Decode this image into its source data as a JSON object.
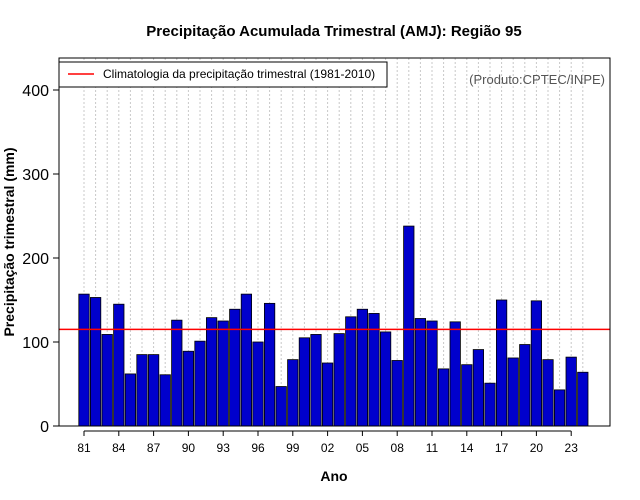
{
  "chart_data": {
    "type": "bar",
    "title": "Precipitação Acumulada Trimestral (AMJ): Região 95",
    "xlabel": "Ano",
    "ylabel": "Precipitação trimestral (mm)",
    "ylim": [
      0,
      440
    ],
    "yticks": [
      0,
      100,
      200,
      300,
      400
    ],
    "grid": "vertical dotted lines per bar",
    "years": [
      1981,
      1982,
      1983,
      1984,
      1985,
      1986,
      1987,
      1988,
      1989,
      1990,
      1991,
      1992,
      1993,
      1994,
      1995,
      1996,
      1997,
      1998,
      1999,
      2000,
      2001,
      2002,
      2003,
      2004,
      2005,
      2006,
      2007,
      2008,
      2009,
      2010,
      2011,
      2012,
      2013,
      2014,
      2015,
      2016,
      2017,
      2018,
      2019,
      2020,
      2021,
      2022,
      2023,
      2024
    ],
    "xtick_labels": [
      {
        "index": 0,
        "label": "81"
      },
      {
        "index": 3,
        "label": "84"
      },
      {
        "index": 6,
        "label": "87"
      },
      {
        "index": 9,
        "label": "90"
      },
      {
        "index": 12,
        "label": "93"
      },
      {
        "index": 15,
        "label": "96"
      },
      {
        "index": 18,
        "label": "99"
      },
      {
        "index": 21,
        "label": "02"
      },
      {
        "index": 24,
        "label": "05"
      },
      {
        "index": 27,
        "label": "08"
      },
      {
        "index": 30,
        "label": "11"
      },
      {
        "index": 33,
        "label": "14"
      },
      {
        "index": 36,
        "label": "17"
      },
      {
        "index": 39,
        "label": "20"
      },
      {
        "index": 42,
        "label": "23"
      }
    ],
    "values": [
      157,
      153,
      109,
      145,
      62,
      85,
      85,
      61,
      126,
      89,
      101,
      129,
      125,
      139,
      157,
      100,
      146,
      47,
      79,
      105,
      109,
      75,
      110,
      130,
      139,
      134,
      112,
      78,
      238,
      128,
      125,
      68,
      124,
      73,
      91,
      51,
      150,
      81,
      97,
      149,
      79,
      43,
      82,
      64
    ],
    "climatology": 115,
    "bar_color": "#0000cc",
    "climatology_color": "#ff0000",
    "legend": {
      "label": "Climatologia da precipitação trimestral (1981-2010)",
      "position": "top-left"
    },
    "annotation": "(Produto:CPTEC/INPE)"
  }
}
